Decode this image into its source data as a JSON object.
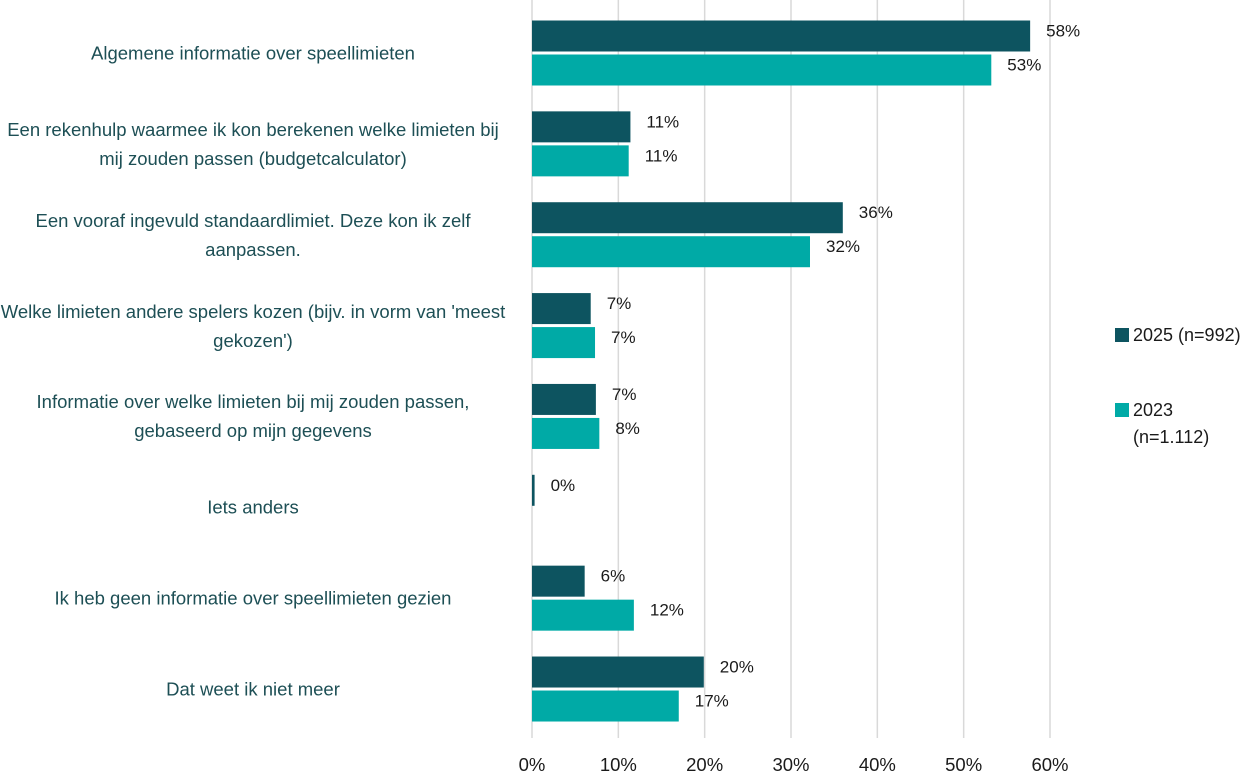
{
  "chart_data": {
    "type": "hbar",
    "categories": [
      "Algemene informatie over speellimieten",
      "Een rekenhulp waarmee ik kon berekenen welke limieten bij mij zouden passen (budgetcalculator)",
      "Een vooraf ingevuld standaardlimiet. Deze kon ik zelf aanpassen.",
      "Welke limieten andere spelers kozen (bijv. in vorm van 'meest gekozen')",
      "Informatie over welke limieten bij mij zouden passen, gebaseerd op mijn gegevens",
      "Iets anders",
      "Ik heb geen informatie over speellimieten gezien",
      "Dat weet ik niet meer"
    ],
    "series": [
      {
        "name": "2025 (n=992)",
        "color": "#0d5460",
        "values": [
          57.7,
          11.4,
          36.0,
          6.8,
          7.4,
          0.3,
          6.1,
          19.9
        ],
        "value_labels": [
          "58%",
          "11%",
          "36%",
          "7%",
          "7%",
          "0%",
          "6%",
          "20%"
        ]
      },
      {
        "name": "2023 (n=1.112)",
        "color": "#00aaa6",
        "values": [
          53.2,
          11.2,
          32.2,
          7.3,
          7.8,
          null,
          11.8,
          17.0
        ],
        "value_labels": [
          "53%",
          "11%",
          "32%",
          "7%",
          "8%",
          null,
          "12%",
          "17%"
        ]
      }
    ],
    "xlim": [
      0,
      60
    ],
    "xticks": [
      {
        "value": 0,
        "label": "0%"
      },
      {
        "value": 10,
        "label": "10%"
      },
      {
        "value": 20,
        "label": "20%"
      },
      {
        "value": 30,
        "label": "30%"
      },
      {
        "value": 40,
        "label": "40%"
      },
      {
        "value": 50,
        "label": "50%"
      },
      {
        "value": 60,
        "label": "60%"
      }
    ],
    "grid": true,
    "legend": "right"
  }
}
